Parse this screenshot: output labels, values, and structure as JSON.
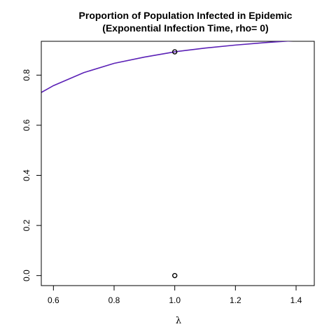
{
  "chart_data": {
    "type": "line",
    "title_lines": [
      "Proportion of Population Infected in Epidemic",
      "(Exponential Infection Time, rho= 0)"
    ],
    "xlabel": "λ",
    "ylabel": "",
    "xlim": [
      0.56,
      1.46
    ],
    "ylim": [
      -0.04,
      0.935
    ],
    "x_ticks": [
      0.6,
      0.8,
      1.0,
      1.2,
      1.4
    ],
    "x_tick_labels": [
      "0.6",
      "0.8",
      "1.0",
      "1.2",
      "1.4"
    ],
    "y_ticks": [
      0.0,
      0.2,
      0.4,
      0.6,
      0.8
    ],
    "y_tick_labels": [
      "0.0",
      "0.2",
      "0.4",
      "0.6",
      "0.8"
    ],
    "grid": false,
    "series": [
      {
        "kind": "line",
        "color": "#5b21b6",
        "x": [
          0.5,
          0.6,
          0.7,
          0.8,
          0.9,
          1.0,
          1.1,
          1.2,
          1.3,
          1.4,
          1.5
        ],
        "y": [
          0.69,
          0.758,
          0.81,
          0.847,
          0.872,
          0.893,
          0.908,
          0.92,
          0.93,
          0.938,
          0.945
        ]
      },
      {
        "kind": "points",
        "color": "#000000",
        "x": [
          1.0,
          1.0
        ],
        "y": [
          0.893,
          0.0
        ]
      }
    ]
  }
}
